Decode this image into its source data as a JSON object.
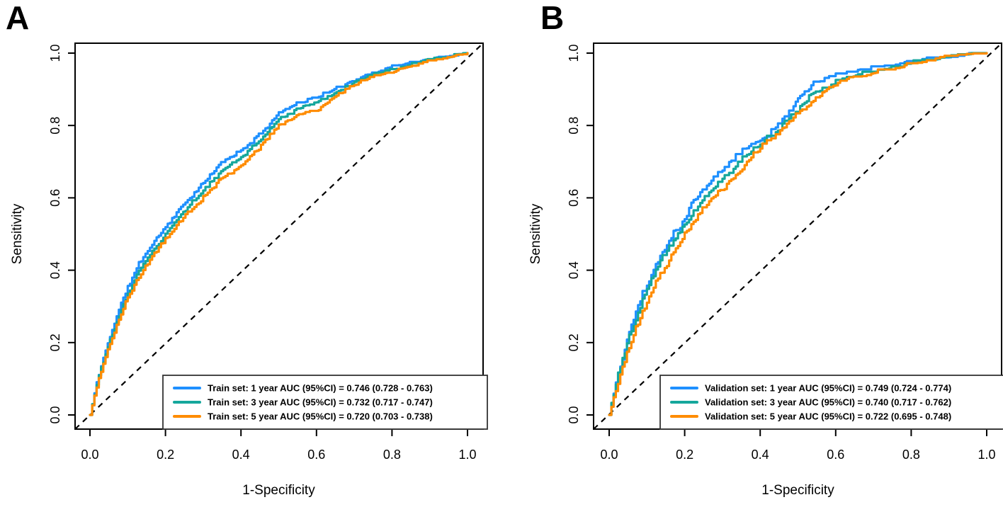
{
  "figure": {
    "background": "#ffffff",
    "axis_color": "#000000",
    "reference_line": {
      "style": "dashed",
      "color": "#000000",
      "from": [
        0,
        0
      ],
      "to": [
        1,
        1
      ]
    }
  },
  "chart_data": [
    {
      "type": "line",
      "subtype": "roc-curve",
      "panel_label": "A",
      "title": "",
      "xlabel": "1-Specificity",
      "ylabel": "Sensitivity",
      "xlim": [
        0,
        1
      ],
      "ylim": [
        0,
        1
      ],
      "x_ticks": [
        0.0,
        0.2,
        0.4,
        0.6,
        0.8,
        1.0
      ],
      "y_ticks": [
        0.0,
        0.2,
        0.4,
        0.6,
        0.8,
        1.0
      ],
      "x_tick_labels": [
        "0.0",
        "0.2",
        "0.4",
        "0.6",
        "0.8",
        "1.0"
      ],
      "y_tick_labels": [
        "0.0",
        "0.2",
        "0.4",
        "0.6",
        "0.8",
        "1.0"
      ],
      "grid": false,
      "diagonal_reference": true,
      "legend_position": "bottom-right",
      "series": [
        {
          "name": "Train set: 1 year",
          "auc": 0.746,
          "ci_low": 0.728,
          "ci_high": 0.763,
          "legend_label": "Train set: 1 year AUC (95%CI) = 0.746 (0.728 - 0.763)",
          "color": "#1E90FF",
          "points": [
            [
              0,
              0
            ],
            [
              0.02,
              0.1
            ],
            [
              0.05,
              0.21
            ],
            [
              0.09,
              0.33
            ],
            [
              0.13,
              0.42
            ],
            [
              0.17,
              0.48
            ],
            [
              0.2,
              0.52
            ],
            [
              0.25,
              0.585
            ],
            [
              0.3,
              0.64
            ],
            [
              0.35,
              0.7
            ],
            [
              0.4,
              0.73
            ],
            [
              0.45,
              0.775
            ],
            [
              0.5,
              0.835
            ],
            [
              0.55,
              0.862
            ],
            [
              0.6,
              0.878
            ],
            [
              0.65,
              0.9
            ],
            [
              0.7,
              0.926
            ],
            [
              0.75,
              0.946
            ],
            [
              0.8,
              0.962
            ],
            [
              0.85,
              0.972
            ],
            [
              0.9,
              0.982
            ],
            [
              0.95,
              0.991
            ],
            [
              1,
              1
            ]
          ]
        },
        {
          "name": "Train set: 3 year",
          "auc": 0.732,
          "ci_low": 0.717,
          "ci_high": 0.747,
          "legend_label": "Train set: 3 year AUC (95%CI) = 0.732 (0.717 - 0.747)",
          "color": "#15A79C",
          "points": [
            [
              0,
              0
            ],
            [
              0.02,
              0.095
            ],
            [
              0.05,
              0.2
            ],
            [
              0.09,
              0.31
            ],
            [
              0.13,
              0.4
            ],
            [
              0.17,
              0.46
            ],
            [
              0.2,
              0.5
            ],
            [
              0.25,
              0.565
            ],
            [
              0.3,
              0.62
            ],
            [
              0.35,
              0.675
            ],
            [
              0.4,
              0.711
            ],
            [
              0.45,
              0.76
            ],
            [
              0.5,
              0.815
            ],
            [
              0.55,
              0.845
            ],
            [
              0.6,
              0.863
            ],
            [
              0.65,
              0.89
            ],
            [
              0.7,
              0.918
            ],
            [
              0.75,
              0.94
            ],
            [
              0.8,
              0.953
            ],
            [
              0.85,
              0.968
            ],
            [
              0.9,
              0.98
            ],
            [
              0.95,
              0.99
            ],
            [
              1,
              1
            ]
          ]
        },
        {
          "name": "Train set: 5 year",
          "auc": 0.72,
          "ci_low": 0.703,
          "ci_high": 0.738,
          "legend_label": "Train set: 5 year AUC (95%CI) = 0.720 (0.703 - 0.738)",
          "color": "#FF8C00",
          "points": [
            [
              0,
              0
            ],
            [
              0.02,
              0.09
            ],
            [
              0.05,
              0.19
            ],
            [
              0.09,
              0.3
            ],
            [
              0.13,
              0.385
            ],
            [
              0.17,
              0.445
            ],
            [
              0.2,
              0.485
            ],
            [
              0.25,
              0.55
            ],
            [
              0.3,
              0.6
            ],
            [
              0.35,
              0.655
            ],
            [
              0.4,
              0.688
            ],
            [
              0.45,
              0.74
            ],
            [
              0.5,
              0.8
            ],
            [
              0.55,
              0.83
            ],
            [
              0.6,
              0.842
            ],
            [
              0.65,
              0.88
            ],
            [
              0.7,
              0.912
            ],
            [
              0.75,
              0.935
            ],
            [
              0.8,
              0.95
            ],
            [
              0.85,
              0.965
            ],
            [
              0.9,
              0.978
            ],
            [
              0.95,
              0.99
            ],
            [
              1,
              1
            ]
          ]
        }
      ]
    },
    {
      "type": "line",
      "subtype": "roc-curve",
      "panel_label": "B",
      "title": "",
      "xlabel": "1-Specificity",
      "ylabel": "Sensitivity",
      "xlim": [
        0,
        1
      ],
      "ylim": [
        0,
        1
      ],
      "x_ticks": [
        0.0,
        0.2,
        0.4,
        0.6,
        0.8,
        1.0
      ],
      "y_ticks": [
        0.0,
        0.2,
        0.4,
        0.6,
        0.8,
        1.0
      ],
      "x_tick_labels": [
        "0.0",
        "0.2",
        "0.4",
        "0.6",
        "0.8",
        "1.0"
      ],
      "y_tick_labels": [
        "0.0",
        "0.2",
        "0.4",
        "0.6",
        "0.8",
        "1.0"
      ],
      "grid": false,
      "diagonal_reference": true,
      "legend_position": "bottom-right",
      "series": [
        {
          "name": "Validation set: 1 year",
          "auc": 0.749,
          "ci_low": 0.724,
          "ci_high": 0.774,
          "legend_label": "Validation set: 1 year AUC (95%CI) = 0.749 (0.724 - 0.774)",
          "color": "#1E90FF",
          "points": [
            [
              0,
              0
            ],
            [
              0.02,
              0.1
            ],
            [
              0.05,
              0.22
            ],
            [
              0.09,
              0.34
            ],
            [
              0.13,
              0.43
            ],
            [
              0.17,
              0.5
            ],
            [
              0.2,
              0.54
            ],
            [
              0.22,
              0.59
            ],
            [
              0.26,
              0.635
            ],
            [
              0.3,
              0.68
            ],
            [
              0.34,
              0.72
            ],
            [
              0.38,
              0.75
            ],
            [
              0.42,
              0.77
            ],
            [
              0.46,
              0.815
            ],
            [
              0.5,
              0.875
            ],
            [
              0.54,
              0.912
            ],
            [
              0.58,
              0.932
            ],
            [
              0.64,
              0.948
            ],
            [
              0.7,
              0.955
            ],
            [
              0.75,
              0.962
            ],
            [
              0.8,
              0.975
            ],
            [
              0.85,
              0.982
            ],
            [
              0.9,
              0.99
            ],
            [
              1,
              1
            ]
          ]
        },
        {
          "name": "Validation set: 3 year",
          "auc": 0.74,
          "ci_low": 0.717,
          "ci_high": 0.762,
          "legend_label": "Validation set: 3 year AUC (95%CI) = 0.740 (0.717 - 0.762)",
          "color": "#15A79C",
          "points": [
            [
              0,
              0
            ],
            [
              0.02,
              0.1
            ],
            [
              0.05,
              0.21
            ],
            [
              0.09,
              0.32
            ],
            [
              0.13,
              0.42
            ],
            [
              0.17,
              0.48
            ],
            [
              0.2,
              0.525
            ],
            [
              0.26,
              0.61
            ],
            [
              0.3,
              0.65
            ],
            [
              0.35,
              0.705
            ],
            [
              0.4,
              0.75
            ],
            [
              0.45,
              0.79
            ],
            [
              0.5,
              0.845
            ],
            [
              0.54,
              0.889
            ],
            [
              0.6,
              0.92
            ],
            [
              0.64,
              0.935
            ],
            [
              0.7,
              0.95
            ],
            [
              0.75,
              0.958
            ],
            [
              0.8,
              0.97
            ],
            [
              0.85,
              0.98
            ],
            [
              0.9,
              0.988
            ],
            [
              1,
              1
            ]
          ]
        },
        {
          "name": "Validation set: 5 year",
          "auc": 0.722,
          "ci_low": 0.695,
          "ci_high": 0.748,
          "legend_label": "Validation set: 5 year AUC (95%CI) = 0.722 (0.695 - 0.748)",
          "color": "#FF8C00",
          "points": [
            [
              0,
              0
            ],
            [
              0.02,
              0.08
            ],
            [
              0.05,
              0.18
            ],
            [
              0.09,
              0.29
            ],
            [
              0.13,
              0.38
            ],
            [
              0.17,
              0.45
            ],
            [
              0.2,
              0.5
            ],
            [
              0.26,
              0.59
            ],
            [
              0.3,
              0.625
            ],
            [
              0.35,
              0.68
            ],
            [
              0.4,
              0.74
            ],
            [
              0.45,
              0.78
            ],
            [
              0.5,
              0.835
            ],
            [
              0.54,
              0.869
            ],
            [
              0.6,
              0.915
            ],
            [
              0.64,
              0.925
            ],
            [
              0.7,
              0.945
            ],
            [
              0.75,
              0.953
            ],
            [
              0.8,
              0.968
            ],
            [
              0.85,
              0.978
            ],
            [
              0.9,
              0.988
            ],
            [
              1,
              1
            ]
          ]
        }
      ]
    }
  ]
}
